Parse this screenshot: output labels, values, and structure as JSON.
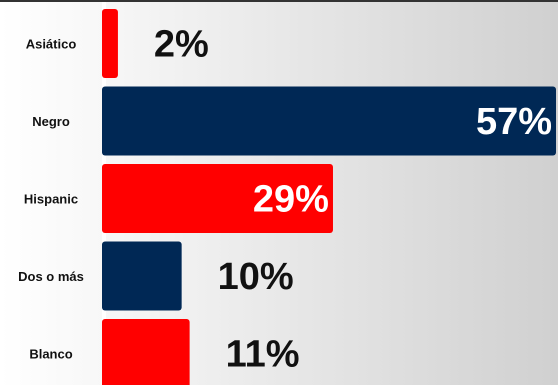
{
  "chart_data": {
    "type": "bar",
    "orientation": "horizontal",
    "title": "",
    "xlabel": "",
    "ylabel": "",
    "categories": [
      "Asiático",
      "Negro",
      "Hispanic",
      "Dos o más",
      "Blanco"
    ],
    "values": [
      2,
      57,
      29,
      10,
      11
    ],
    "value_labels": [
      "2%",
      "57%",
      "29%",
      "10%",
      "11%"
    ],
    "xlim": [
      0,
      57
    ],
    "grid": false,
    "legend": "none",
    "bar_colors": [
      "#ff0000",
      "#002855",
      "#ff0000",
      "#002855",
      "#ff0000"
    ],
    "label_colors": {
      "inside": "#ffffff",
      "outside": "#111111"
    }
  }
}
